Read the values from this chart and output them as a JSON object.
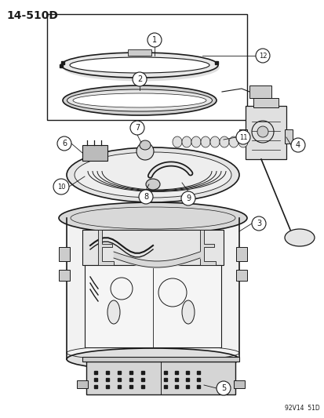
{
  "title": "14-510D",
  "watermark": "92V14  51D",
  "bg": "#ffffff",
  "lc": "#1a1a1a",
  "fig_width": 4.14,
  "fig_height": 5.33,
  "dpi": 100
}
